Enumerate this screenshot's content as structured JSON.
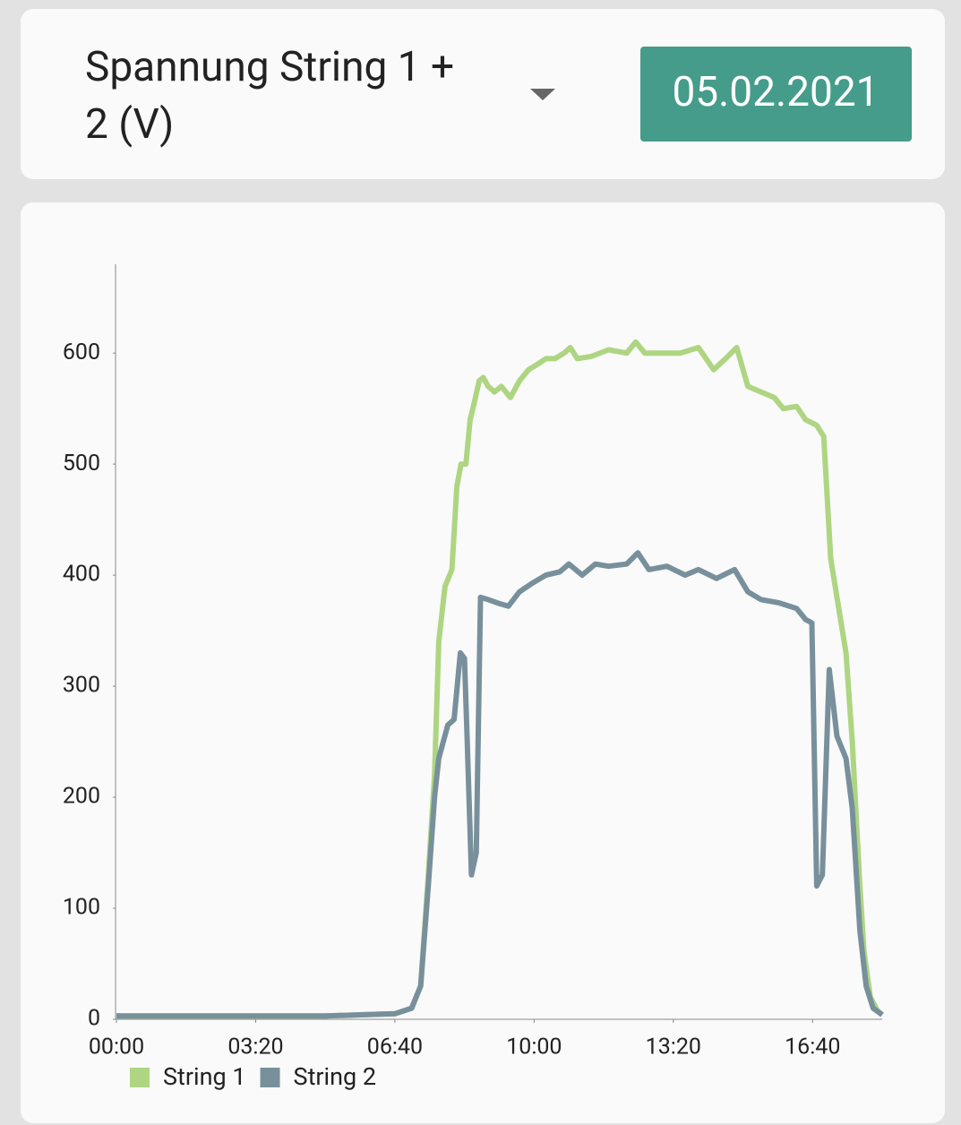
{
  "header": {
    "title": "Spannung String 1 + 2 (V)",
    "date": "05.02.2021"
  },
  "chart_data": {
    "type": "line",
    "xlim": [
      0,
      1100
    ],
    "xticks": [
      {
        "value": 0,
        "label": "00:00"
      },
      {
        "value": 200,
        "label": "03:20"
      },
      {
        "value": 400,
        "label": "06:40"
      },
      {
        "value": 600,
        "label": "10:00"
      },
      {
        "value": 800,
        "label": "13:20"
      },
      {
        "value": 1000,
        "label": "16:40"
      }
    ],
    "ylim": [
      0,
      680
    ],
    "yticks": [
      0,
      100,
      200,
      300,
      400,
      500,
      600
    ],
    "series": [
      {
        "name": "String 1",
        "color": "#aed581",
        "x": [
          0,
          100,
          200,
          300,
          350,
          400,
          424,
          437,
          448,
          457,
          463,
          472,
          482,
          489,
          495,
          502,
          508,
          514,
          521,
          527,
          534,
          543,
          553,
          566,
          579,
          592,
          605,
          617,
          630,
          643,
          652,
          662,
          682,
          707,
          733,
          746,
          759,
          785,
          810,
          836,
          858,
          875,
          891,
          907,
          926,
          945,
          958,
          977,
          990,
          1006,
          1016,
          1026,
          1035,
          1048,
          1057,
          1068,
          1074,
          1083,
          1093,
          1100
        ],
        "values": [
          3,
          3,
          3,
          3,
          4,
          5,
          10,
          30,
          130,
          220,
          340,
          390,
          405,
          480,
          500,
          500,
          540,
          555,
          575,
          578,
          570,
          565,
          570,
          560,
          575,
          585,
          590,
          595,
          595,
          600,
          605,
          595,
          597,
          603,
          600,
          610,
          600,
          600,
          600,
          605,
          585,
          595,
          605,
          570,
          565,
          560,
          550,
          552,
          540,
          535,
          525,
          415,
          380,
          330,
          250,
          120,
          60,
          20,
          8,
          4
        ]
      },
      {
        "name": "String 2",
        "color": "#78909c",
        "x": [
          0,
          100,
          200,
          300,
          350,
          400,
          424,
          437,
          448,
          457,
          463,
          476,
          485,
          494,
          500,
          504,
          510,
          517,
          523,
          534,
          547,
          563,
          579,
          598,
          617,
          637,
          650,
          669,
          688,
          707,
          733,
          749,
          765,
          791,
          817,
          836,
          862,
          888,
          907,
          926,
          952,
          977,
          990,
          999,
          1006,
          1014,
          1024,
          1035,
          1048,
          1057,
          1068,
          1077,
          1087,
          1100
        ],
        "values": [
          3,
          3,
          3,
          3,
          4,
          5,
          10,
          30,
          120,
          200,
          235,
          265,
          270,
          330,
          325,
          250,
          130,
          150,
          380,
          378,
          375,
          372,
          385,
          393,
          400,
          403,
          410,
          400,
          410,
          408,
          410,
          420,
          405,
          408,
          400,
          405,
          397,
          405,
          385,
          378,
          375,
          370,
          360,
          357,
          120,
          130,
          315,
          255,
          235,
          190,
          80,
          30,
          10,
          4
        ]
      }
    ]
  }
}
